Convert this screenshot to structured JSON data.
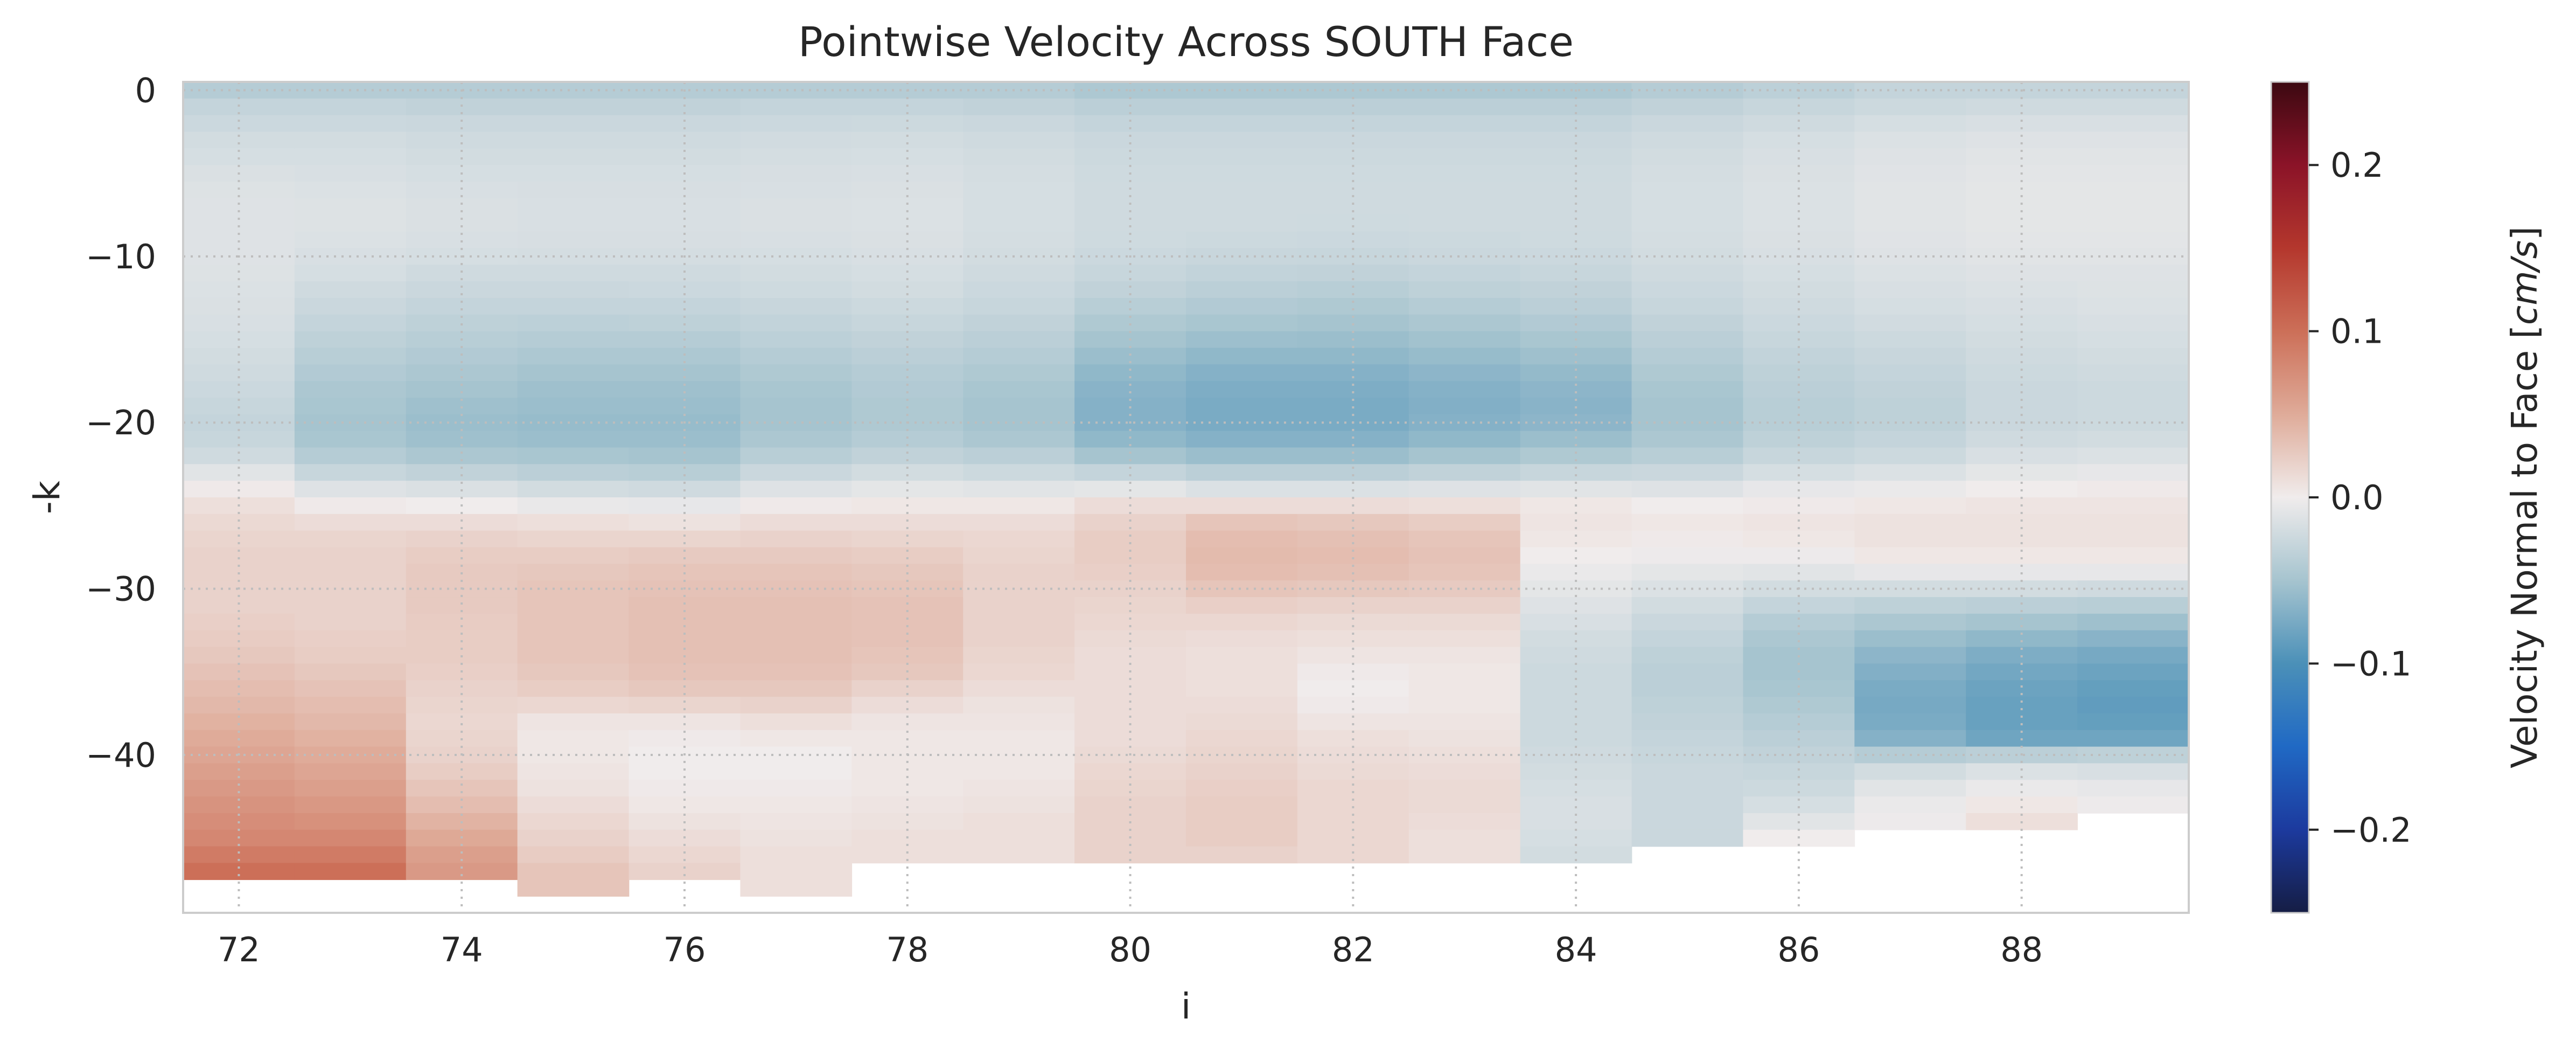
{
  "chart_data": {
    "type": "heatmap",
    "title": "Pointwise Velocity Across SOUTH Face",
    "xlabel": "i",
    "ylabel": "-k",
    "x_ticks": [
      72,
      74,
      76,
      78,
      80,
      82,
      84,
      86,
      88
    ],
    "y_ticks": [
      0,
      -10,
      -20,
      -30,
      -40
    ],
    "xlim": [
      71.5,
      89.5
    ],
    "ylim": [
      -49.5,
      0.5
    ],
    "grid": true,
    "colorbar": {
      "label_prefix": "Velocity Normal to Face [",
      "label_unit": "cm/s",
      "label_suffix": "]",
      "range": [
        -0.25,
        0.25
      ],
      "ticks": [
        "0.2",
        "0.1",
        "0.0",
        "−0.1",
        "−0.2"
      ],
      "tick_values": [
        0.2,
        0.1,
        0.0,
        -0.1,
        -0.2
      ],
      "colormap": "balance (diverging: navy → blue → light gray → red → dark red)"
    },
    "i_values": [
      72,
      73,
      74,
      75,
      76,
      77,
      78,
      79,
      80,
      81,
      82,
      83,
      84,
      85,
      86,
      87,
      88,
      89
    ],
    "k_values_note": "columns ordered by i; each column lists velocity (cm/s) for k = 0,1,2,... (rows below the bottom are empty/land)",
    "columns": [
      {
        "i": 72,
        "velocity": [
          -0.04,
          -0.03,
          -0.025,
          -0.02,
          -0.018,
          -0.015,
          -0.013,
          -0.012,
          -0.012,
          -0.012,
          -0.012,
          -0.013,
          -0.014,
          -0.015,
          -0.016,
          -0.018,
          -0.02,
          -0.022,
          -0.025,
          -0.028,
          -0.03,
          -0.028,
          -0.022,
          -0.01,
          0.002,
          0.01,
          0.015,
          0.018,
          0.02,
          0.02,
          0.02,
          0.02,
          0.022,
          0.025,
          0.028,
          0.032,
          0.036,
          0.04,
          0.045,
          0.05,
          0.055,
          0.06,
          0.065,
          0.07,
          0.075,
          0.08,
          0.09,
          0.1
        ]
      },
      {
        "i": 73,
        "velocity": [
          -0.04,
          -0.03,
          -0.025,
          -0.02,
          -0.018,
          -0.016,
          -0.014,
          -0.013,
          -0.013,
          -0.014,
          -0.016,
          -0.018,
          -0.022,
          -0.026,
          -0.03,
          -0.034,
          -0.038,
          -0.042,
          -0.046,
          -0.048,
          -0.05,
          -0.048,
          -0.04,
          -0.028,
          -0.012,
          0.002,
          0.012,
          0.018,
          0.02,
          0.02,
          0.02,
          0.02,
          0.02,
          0.022,
          0.024,
          0.028,
          0.032,
          0.036,
          0.04,
          0.045,
          0.05,
          0.055,
          0.06,
          0.066,
          0.072,
          0.08,
          0.09,
          0.1
        ]
      },
      {
        "i": 74,
        "velocity": [
          -0.04,
          -0.032,
          -0.026,
          -0.022,
          -0.02,
          -0.018,
          -0.016,
          -0.015,
          -0.015,
          -0.016,
          -0.018,
          -0.022,
          -0.026,
          -0.03,
          -0.034,
          -0.038,
          -0.042,
          -0.046,
          -0.05,
          -0.054,
          -0.056,
          -0.054,
          -0.046,
          -0.032,
          -0.015,
          0.0,
          0.012,
          0.02,
          0.024,
          0.026,
          0.026,
          0.026,
          0.025,
          0.024,
          0.024,
          0.022,
          0.02,
          0.018,
          0.016,
          0.018,
          0.02,
          0.024,
          0.03,
          0.036,
          0.044,
          0.052,
          0.06,
          0.065
        ]
      },
      {
        "i": 75,
        "velocity": [
          -0.04,
          -0.032,
          -0.026,
          -0.022,
          -0.02,
          -0.018,
          -0.017,
          -0.016,
          -0.016,
          -0.017,
          -0.019,
          -0.022,
          -0.026,
          -0.03,
          -0.035,
          -0.04,
          -0.045,
          -0.05,
          -0.054,
          -0.056,
          -0.058,
          -0.056,
          -0.048,
          -0.036,
          -0.02,
          -0.005,
          0.01,
          0.018,
          0.024,
          0.028,
          0.03,
          0.03,
          0.03,
          0.03,
          0.03,
          0.028,
          0.024,
          0.016,
          0.006,
          0.004,
          0.004,
          0.006,
          0.008,
          0.012,
          0.016,
          0.02,
          0.025,
          0.03,
          0.03
        ]
      },
      {
        "i": 76,
        "velocity": [
          -0.04,
          -0.032,
          -0.026,
          -0.022,
          -0.02,
          -0.018,
          -0.017,
          -0.016,
          -0.016,
          -0.017,
          -0.019,
          -0.022,
          -0.025,
          -0.03,
          -0.034,
          -0.04,
          -0.045,
          -0.05,
          -0.054,
          -0.056,
          -0.058,
          -0.056,
          -0.05,
          -0.038,
          -0.022,
          -0.006,
          0.008,
          0.018,
          0.026,
          0.03,
          0.032,
          0.034,
          0.034,
          0.034,
          0.034,
          0.032,
          0.028,
          0.018,
          0.006,
          0.002,
          0.0,
          0.0,
          0.002,
          0.004,
          0.008,
          0.012,
          0.016,
          0.02
        ]
      },
      {
        "i": 77,
        "velocity": [
          -0.04,
          -0.03,
          -0.025,
          -0.021,
          -0.019,
          -0.017,
          -0.016,
          -0.015,
          -0.015,
          -0.016,
          -0.018,
          -0.02,
          -0.023,
          -0.027,
          -0.031,
          -0.035,
          -0.04,
          -0.044,
          -0.048,
          -0.05,
          -0.05,
          -0.046,
          -0.038,
          -0.026,
          -0.012,
          0.002,
          0.012,
          0.02,
          0.026,
          0.03,
          0.032,
          0.034,
          0.034,
          0.034,
          0.034,
          0.032,
          0.028,
          0.02,
          0.01,
          0.004,
          0.0,
          0.0,
          0.002,
          0.004,
          0.006,
          0.008,
          0.01,
          0.01,
          0.01
        ]
      },
      {
        "i": 78,
        "velocity": [
          -0.04,
          -0.03,
          -0.024,
          -0.02,
          -0.018,
          -0.016,
          -0.015,
          -0.014,
          -0.014,
          -0.015,
          -0.016,
          -0.018,
          -0.02,
          -0.024,
          -0.028,
          -0.032,
          -0.036,
          -0.04,
          -0.042,
          -0.044,
          -0.044,
          -0.04,
          -0.032,
          -0.02,
          -0.008,
          0.004,
          0.012,
          0.018,
          0.024,
          0.028,
          0.03,
          0.032,
          0.032,
          0.032,
          0.03,
          0.028,
          0.02,
          0.012,
          0.006,
          0.004,
          0.004,
          0.004,
          0.004,
          0.006,
          0.008,
          0.01,
          0.01
        ]
      },
      {
        "i": 79,
        "velocity": [
          -0.04,
          -0.032,
          -0.026,
          -0.022,
          -0.02,
          -0.019,
          -0.018,
          -0.018,
          -0.018,
          -0.019,
          -0.02,
          -0.022,
          -0.025,
          -0.028,
          -0.032,
          -0.036,
          -0.04,
          -0.044,
          -0.048,
          -0.05,
          -0.05,
          -0.046,
          -0.036,
          -0.024,
          -0.01,
          0.004,
          0.012,
          0.016,
          0.018,
          0.02,
          0.02,
          0.02,
          0.02,
          0.02,
          0.018,
          0.016,
          0.012,
          0.008,
          0.006,
          0.004,
          0.004,
          0.004,
          0.006,
          0.008,
          0.01,
          0.01,
          0.01
        ]
      },
      {
        "i": 80,
        "velocity": [
          -0.045,
          -0.036,
          -0.03,
          -0.026,
          -0.024,
          -0.023,
          -0.022,
          -0.022,
          -0.022,
          -0.023,
          -0.025,
          -0.028,
          -0.032,
          -0.038,
          -0.044,
          -0.05,
          -0.056,
          -0.062,
          -0.066,
          -0.068,
          -0.068,
          -0.062,
          -0.05,
          -0.03,
          -0.008,
          0.012,
          0.02,
          0.024,
          0.024,
          0.022,
          0.02,
          0.018,
          0.016,
          0.014,
          0.012,
          0.012,
          0.012,
          0.012,
          0.012,
          0.012,
          0.014,
          0.016,
          0.018,
          0.02,
          0.02,
          0.02,
          0.02
        ]
      },
      {
        "i": 81,
        "velocity": [
          -0.045,
          -0.036,
          -0.03,
          -0.026,
          -0.024,
          -0.023,
          -0.022,
          -0.022,
          -0.022,
          -0.024,
          -0.027,
          -0.031,
          -0.036,
          -0.042,
          -0.048,
          -0.055,
          -0.062,
          -0.068,
          -0.072,
          -0.074,
          -0.074,
          -0.068,
          -0.056,
          -0.036,
          -0.014,
          0.012,
          0.03,
          0.036,
          0.038,
          0.036,
          0.03,
          0.022,
          0.016,
          0.012,
          0.01,
          0.01,
          0.01,
          0.012,
          0.014,
          0.016,
          0.018,
          0.02,
          0.022,
          0.024,
          0.024,
          0.024,
          0.02
        ]
      },
      {
        "i": 82,
        "velocity": [
          -0.045,
          -0.036,
          -0.03,
          -0.026,
          -0.024,
          -0.023,
          -0.022,
          -0.022,
          -0.023,
          -0.025,
          -0.028,
          -0.032,
          -0.038,
          -0.044,
          -0.05,
          -0.056,
          -0.062,
          -0.068,
          -0.072,
          -0.074,
          -0.074,
          -0.068,
          -0.056,
          -0.036,
          -0.014,
          0.012,
          0.028,
          0.034,
          0.036,
          0.034,
          0.028,
          0.02,
          0.014,
          0.01,
          0.006,
          0.002,
          0.0,
          0.002,
          0.006,
          0.01,
          0.012,
          0.014,
          0.016,
          0.016,
          0.016,
          0.016,
          0.016
        ]
      },
      {
        "i": 83,
        "velocity": [
          -0.045,
          -0.036,
          -0.03,
          -0.026,
          -0.024,
          -0.023,
          -0.022,
          -0.022,
          -0.022,
          -0.024,
          -0.026,
          -0.03,
          -0.034,
          -0.04,
          -0.046,
          -0.052,
          -0.058,
          -0.064,
          -0.068,
          -0.07,
          -0.068,
          -0.062,
          -0.05,
          -0.032,
          -0.012,
          0.01,
          0.024,
          0.03,
          0.032,
          0.03,
          0.026,
          0.02,
          0.014,
          0.01,
          0.006,
          0.004,
          0.004,
          0.004,
          0.006,
          0.008,
          0.01,
          0.012,
          0.014,
          0.014,
          0.012,
          0.01,
          0.01
        ]
      },
      {
        "i": 84,
        "velocity": [
          -0.045,
          -0.036,
          -0.03,
          -0.026,
          -0.024,
          -0.023,
          -0.022,
          -0.022,
          -0.022,
          -0.023,
          -0.025,
          -0.028,
          -0.032,
          -0.036,
          -0.042,
          -0.048,
          -0.054,
          -0.06,
          -0.064,
          -0.066,
          -0.064,
          -0.056,
          -0.044,
          -0.028,
          -0.01,
          0.004,
          0.006,
          0.004,
          0.0,
          -0.004,
          -0.008,
          -0.012,
          -0.016,
          -0.02,
          -0.022,
          -0.024,
          -0.024,
          -0.024,
          -0.024,
          -0.024,
          -0.022,
          -0.02,
          -0.018,
          -0.016,
          -0.016,
          -0.018,
          -0.02
        ]
      },
      {
        "i": 85,
        "velocity": [
          -0.04,
          -0.032,
          -0.026,
          -0.022,
          -0.02,
          -0.019,
          -0.018,
          -0.018,
          -0.018,
          -0.019,
          -0.02,
          -0.022,
          -0.025,
          -0.028,
          -0.032,
          -0.036,
          -0.04,
          -0.044,
          -0.048,
          -0.05,
          -0.05,
          -0.046,
          -0.038,
          -0.026,
          -0.012,
          0.0,
          0.004,
          0.002,
          -0.002,
          -0.008,
          -0.014,
          -0.02,
          -0.026,
          -0.03,
          -0.034,
          -0.036,
          -0.036,
          -0.034,
          -0.032,
          -0.03,
          -0.028,
          -0.026,
          -0.026,
          -0.026,
          -0.026,
          -0.026
        ]
      },
      {
        "i": 86,
        "velocity": [
          -0.035,
          -0.028,
          -0.022,
          -0.018,
          -0.016,
          -0.015,
          -0.014,
          -0.014,
          -0.014,
          -0.015,
          -0.016,
          -0.018,
          -0.02,
          -0.022,
          -0.025,
          -0.028,
          -0.031,
          -0.034,
          -0.036,
          -0.038,
          -0.038,
          -0.034,
          -0.028,
          -0.018,
          -0.006,
          0.002,
          0.006,
          0.004,
          -0.002,
          -0.01,
          -0.02,
          -0.03,
          -0.04,
          -0.046,
          -0.05,
          -0.05,
          -0.048,
          -0.044,
          -0.04,
          -0.036,
          -0.032,
          -0.028,
          -0.024,
          -0.018,
          -0.01,
          0.0
        ]
      },
      {
        "i": 87,
        "velocity": [
          -0.03,
          -0.024,
          -0.018,
          -0.014,
          -0.012,
          -0.011,
          -0.01,
          -0.01,
          -0.01,
          -0.011,
          -0.012,
          -0.014,
          -0.016,
          -0.018,
          -0.021,
          -0.024,
          -0.027,
          -0.03,
          -0.032,
          -0.034,
          -0.034,
          -0.03,
          -0.024,
          -0.014,
          -0.004,
          0.004,
          0.008,
          0.008,
          0.004,
          -0.006,
          -0.02,
          -0.034,
          -0.046,
          -0.056,
          -0.064,
          -0.07,
          -0.074,
          -0.076,
          -0.074,
          -0.068,
          -0.04,
          -0.02,
          -0.01,
          -0.004,
          -0.002
        ]
      },
      {
        "i": 88,
        "velocity": [
          -0.03,
          -0.022,
          -0.016,
          -0.012,
          -0.01,
          -0.009,
          -0.008,
          -0.008,
          -0.008,
          -0.009,
          -0.01,
          -0.012,
          -0.014,
          -0.016,
          -0.018,
          -0.02,
          -0.022,
          -0.024,
          -0.026,
          -0.026,
          -0.026,
          -0.022,
          -0.016,
          -0.008,
          0.0,
          0.006,
          0.008,
          0.008,
          0.004,
          -0.006,
          -0.02,
          -0.036,
          -0.05,
          -0.062,
          -0.072,
          -0.078,
          -0.082,
          -0.084,
          -0.084,
          -0.08,
          -0.036,
          -0.014,
          -0.004,
          0.004,
          0.01
        ]
      },
      {
        "i": 89,
        "velocity": [
          -0.03,
          -0.022,
          -0.016,
          -0.012,
          -0.01,
          -0.009,
          -0.008,
          -0.008,
          -0.008,
          -0.009,
          -0.01,
          -0.012,
          -0.013,
          -0.014,
          -0.016,
          -0.018,
          -0.02,
          -0.022,
          -0.024,
          -0.024,
          -0.024,
          -0.02,
          -0.014,
          -0.006,
          0.002,
          0.006,
          0.008,
          0.008,
          0.004,
          -0.006,
          -0.022,
          -0.038,
          -0.054,
          -0.066,
          -0.076,
          -0.082,
          -0.086,
          -0.088,
          -0.086,
          -0.08,
          -0.034,
          -0.016,
          -0.006,
          -0.002
        ]
      }
    ]
  }
}
